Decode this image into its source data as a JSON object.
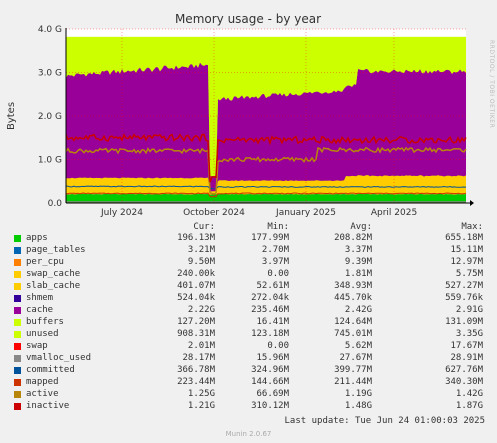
{
  "chart_data": {
    "type": "area",
    "title": "Memory usage - by year",
    "ylabel": "Bytes",
    "ylim": [
      0,
      4000000000
    ],
    "y_ticks": [
      "0.0",
      "1.0 G",
      "2.0 G",
      "3.0 G",
      "4.0 G"
    ],
    "x_ticks": [
      "July 2024",
      "October 2024",
      "January 2025",
      "April 2025"
    ],
    "grid": true,
    "legend_placement": "bottom",
    "columns": [
      "Cur:",
      "Min:",
      "Avg:",
      "Max:"
    ],
    "series": [
      {
        "name": "apps",
        "color": "#00cc00",
        "cur": "196.13M",
        "min": "177.99M",
        "avg": "208.82M",
        "max": "655.18M"
      },
      {
        "name": "page_tables",
        "color": "#0066b3",
        "cur": "3.21M",
        "min": "2.70M",
        "avg": "3.37M",
        "max": "15.11M"
      },
      {
        "name": "per_cpu",
        "color": "#ff8000",
        "cur": "9.50M",
        "min": "3.97M",
        "avg": "9.39M",
        "max": "12.97M"
      },
      {
        "name": "swap_cache",
        "color": "#ffcc00",
        "cur": "240.00k",
        "min": "0.00",
        "avg": "1.81M",
        "max": "5.75M"
      },
      {
        "name": "slab_cache",
        "color": "#ffcc00",
        "cur": "401.07M",
        "min": "52.61M",
        "avg": "348.93M",
        "max": "527.27M"
      },
      {
        "name": "shmem",
        "color": "#330099",
        "cur": "524.04k",
        "min": "272.04k",
        "avg": "445.70k",
        "max": "559.76k"
      },
      {
        "name": "cache",
        "color": "#990099",
        "cur": "2.22G",
        "min": "235.46M",
        "avg": "2.42G",
        "max": "2.91G"
      },
      {
        "name": "buffers",
        "color": "#ccff00",
        "cur": "127.20M",
        "min": "16.41M",
        "avg": "124.64M",
        "max": "131.09M"
      },
      {
        "name": "unused",
        "color": "#ccff00",
        "cur": "908.31M",
        "min": "123.18M",
        "avg": "745.01M",
        "max": "3.35G"
      },
      {
        "name": "swap",
        "color": "#ff0000",
        "cur": "2.01M",
        "min": "0.00",
        "avg": "5.62M",
        "max": "17.67M"
      },
      {
        "name": "vmalloc_used",
        "color": "#888888",
        "cur": "28.17M",
        "min": "15.96M",
        "avg": "27.67M",
        "max": "28.91M"
      },
      {
        "name": "committed",
        "color": "#00529b",
        "cur": "366.78M",
        "min": "324.96M",
        "avg": "399.77M",
        "max": "627.76M"
      },
      {
        "name": "mapped",
        "color": "#cc3300",
        "cur": "223.44M",
        "min": "144.66M",
        "avg": "211.44M",
        "max": "340.30M"
      },
      {
        "name": "active",
        "color": "#b8860b",
        "cur": "1.25G",
        "min": "66.69M",
        "avg": "1.19G",
        "max": "1.42G"
      },
      {
        "name": "inactive",
        "color": "#cc0000",
        "cur": "1.21G",
        "min": "310.12M",
        "avg": "1.48G",
        "max": "1.87G"
      }
    ]
  },
  "footer": {
    "last_update": "Last update:  Tue Jun 24 01:00:03 2025",
    "version": "Munin 2.0.67",
    "side_label": "RRDTOOL / TOBI OETIKER"
  }
}
